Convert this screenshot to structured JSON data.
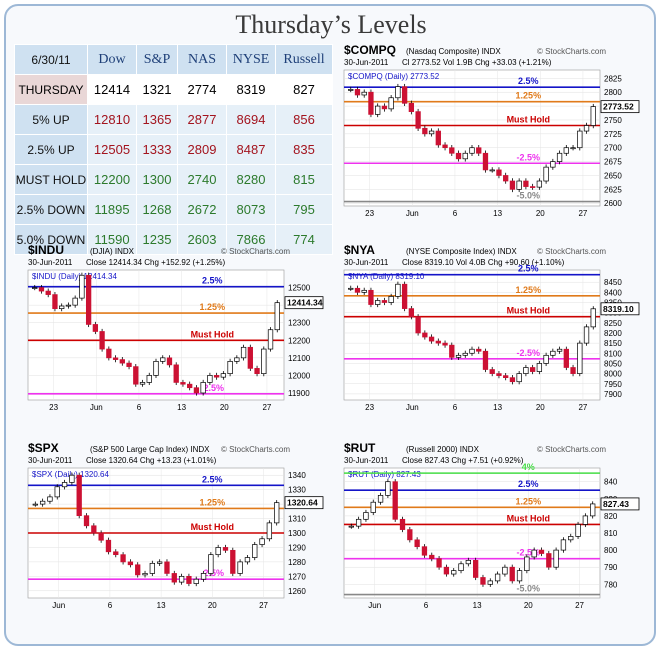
{
  "title": "Thursday’s Levels",
  "table": {
    "date": "6/30/11",
    "columns": [
      "Dow",
      "S&P",
      "NAS",
      "NYSE",
      "Russell"
    ],
    "rows": [
      {
        "label": "THURSDAY",
        "kind": "thr",
        "values": [
          "12414",
          "1321",
          "2774",
          "8319",
          "827"
        ]
      },
      {
        "label": "5% UP",
        "kind": "up",
        "values": [
          "12810",
          "1365",
          "2877",
          "8694",
          "856"
        ]
      },
      {
        "label": "2.5% UP",
        "kind": "up",
        "values": [
          "12505",
          "1333",
          "2809",
          "8487",
          "835"
        ]
      },
      {
        "label": "MUST HOLD",
        "kind": "mh",
        "values": [
          "12200",
          "1300",
          "2740",
          "8280",
          "815"
        ]
      },
      {
        "label": "2.5% DOWN",
        "kind": "dn",
        "values": [
          "11895",
          "1268",
          "2672",
          "8073",
          "795"
        ]
      },
      {
        "label": "5.0% DOWN",
        "kind": "dn",
        "values": [
          "11590",
          "1235",
          "2603",
          "7866",
          "774"
        ]
      }
    ]
  },
  "colors": {
    "blue": "#1414c8",
    "orange": "#e07a1a",
    "red": "#cc0000",
    "magenta": "#ee33ee",
    "gray": "#888888",
    "green": "#44dd44",
    "candle_down": "#cc1133"
  },
  "chart_data": [
    {
      "id": "compq",
      "type": "candlestick",
      "symbol": "$COMPQ",
      "name": "(Nasdaq Composite) INDX",
      "date": "30-Jun-2011",
      "stats": "Cl 2773.52  Vol 1.9B  Chg +33.03 (+1.21%)",
      "legend": "$COMPQ (Daily) 2773.52",
      "last": "2773.52",
      "ylim": [
        2595,
        2840
      ],
      "yticks": [
        2600,
        2625,
        2650,
        2675,
        2700,
        2725,
        2750,
        2775,
        2800,
        2825
      ],
      "xlabels": [
        "23",
        "Jun",
        "6",
        "13",
        "20",
        "27"
      ],
      "levels": [
        {
          "value": 2809,
          "label": "2.5%",
          "color": "blue"
        },
        {
          "value": 2783,
          "label": "1.25%",
          "color": "orange"
        },
        {
          "value": 2740,
          "label": "Must Hold",
          "color": "red"
        },
        {
          "value": 2672,
          "label": "-2.5%",
          "color": "magenta"
        },
        {
          "value": 2603,
          "label": "-5.0%",
          "color": "gray"
        }
      ],
      "closes": [
        2805,
        2795,
        2800,
        2760,
        2775,
        2770,
        2790,
        2810,
        2780,
        2765,
        2735,
        2725,
        2730,
        2705,
        2700,
        2690,
        2680,
        2690,
        2700,
        2690,
        2660,
        2660,
        2650,
        2640,
        2625,
        2640,
        2630,
        2629,
        2640,
        2665,
        2675,
        2690,
        2700,
        2700,
        2730,
        2740,
        2774
      ]
    },
    {
      "id": "indu",
      "type": "candlestick",
      "symbol": "$INDU",
      "name": "(DJIA) INDX",
      "date": "30-Jun-2011",
      "stats": "Close 12414.34  Chg +152.92 (+1.25%)",
      "legend": "$INDU (Daily) 12414.34",
      "last": "12414.34",
      "ylim": [
        11860,
        12600
      ],
      "yticks": [
        11900,
        12000,
        12100,
        12200,
        12300,
        12400,
        12500
      ],
      "xlabels": [
        "23",
        "Jun",
        "6",
        "13",
        "20",
        "27"
      ],
      "levels": [
        {
          "value": 12505,
          "label": "2.5%",
          "color": "blue"
        },
        {
          "value": 12355,
          "label": "1.25%",
          "color": "orange"
        },
        {
          "value": 12200,
          "label": "Must Hold",
          "color": "red"
        },
        {
          "value": 11895,
          "label": "-2.5%",
          "color": "magenta"
        }
      ],
      "closes": [
        12500,
        12480,
        12460,
        12380,
        12395,
        12400,
        12440,
        12570,
        12290,
        12250,
        12150,
        12100,
        12090,
        12070,
        12050,
        11950,
        11960,
        12000,
        12080,
        12100,
        12060,
        11960,
        11950,
        11930,
        11900,
        11960,
        12000,
        11990,
        12010,
        12080,
        12100,
        12160,
        12040,
        12010,
        12150,
        12260,
        12414
      ]
    },
    {
      "id": "nya",
      "type": "candlestick",
      "symbol": "$NYA",
      "name": "(NYSE Composite Index) INDX",
      "date": "30-Jun-2011",
      "stats": "Close 8319.10  Vol 4.0B  Chg +90.60 (+1.10%)",
      "legend": "$NYA (Daily) 8319.10",
      "last": "8319.10",
      "ylim": [
        7870,
        8510
      ],
      "yticks": [
        7900,
        7950,
        8000,
        8050,
        8100,
        8150,
        8200,
        8250,
        8300,
        8350,
        8400,
        8450
      ],
      "xlabels": [
        "23",
        "Jun",
        "6",
        "13",
        "20",
        "27"
      ],
      "levels": [
        {
          "value": 8487,
          "label": "2.5%",
          "color": "blue"
        },
        {
          "value": 8383,
          "label": "1.25%",
          "color": "orange"
        },
        {
          "value": 8280,
          "label": "Must Hold",
          "color": "red"
        },
        {
          "value": 8073,
          "label": "-2.5%",
          "color": "magenta"
        }
      ],
      "closes": [
        8420,
        8400,
        8410,
        8340,
        8360,
        8350,
        8380,
        8440,
        8320,
        8280,
        8200,
        8180,
        8160,
        8150,
        8140,
        8080,
        8090,
        8100,
        8120,
        8110,
        8020,
        8000,
        7990,
        7980,
        7960,
        8000,
        8030,
        8010,
        8050,
        8090,
        8110,
        8120,
        8030,
        8000,
        8150,
        8230,
        8319
      ]
    },
    {
      "id": "spx",
      "type": "candlestick",
      "symbol": "$SPX",
      "name": "(S&P 500 Large Cap Index) INDX",
      "date": "30-Jun-2011",
      "stats": "Close 1320.64  Chg +13.23 (+1.01%)",
      "legend": "$SPX (Daily) 1320.64",
      "last": "1320.64",
      "ylim": [
        1255,
        1345
      ],
      "yticks": [
        1260,
        1270,
        1280,
        1290,
        1300,
        1310,
        1320,
        1330,
        1340
      ],
      "xlabels": [
        "Jun",
        "6",
        "13",
        "20",
        "27"
      ],
      "levels": [
        {
          "value": 1333,
          "label": "2.5%",
          "color": "blue"
        },
        {
          "value": 1317,
          "label": "1.25%",
          "color": "orange"
        },
        {
          "value": 1300,
          "label": "Must Hold",
          "color": "red"
        },
        {
          "value": 1268,
          "label": "-2.5%",
          "color": "magenta"
        }
      ],
      "closes": [
        1320,
        1322,
        1325,
        1332,
        1335,
        1340,
        1312,
        1305,
        1300,
        1295,
        1287,
        1285,
        1280,
        1278,
        1271,
        1272,
        1279,
        1280,
        1272,
        1266,
        1270,
        1265,
        1268,
        1272,
        1285,
        1290,
        1288,
        1272,
        1280,
        1283,
        1292,
        1296,
        1307,
        1321
      ]
    },
    {
      "id": "rut",
      "type": "candlestick",
      "symbol": "$RUT",
      "name": "(Russell 2000) INDX",
      "date": "30-Jun-2011",
      "stats": "Close 827.43  Chg +7.51 (+0.92%)",
      "legend": "$RUT (Daily) 827.43",
      "last": "827.43",
      "ylim": [
        772,
        848
      ],
      "yticks": [
        780,
        790,
        800,
        810,
        820,
        830,
        840
      ],
      "xlabels": [
        "Jun",
        "6",
        "13",
        "20",
        "27"
      ],
      "levels": [
        {
          "value": 845,
          "label": "4%",
          "color": "green"
        },
        {
          "value": 835,
          "label": "2.5%",
          "color": "blue"
        },
        {
          "value": 825,
          "label": "1.25%",
          "color": "orange"
        },
        {
          "value": 815,
          "label": "Must Hold",
          "color": "red"
        },
        {
          "value": 795,
          "label": "-2.5%",
          "color": "magenta"
        },
        {
          "value": 774,
          "label": "-5.0%",
          "color": "gray"
        }
      ],
      "closes": [
        814,
        818,
        822,
        828,
        832,
        840,
        818,
        812,
        806,
        802,
        797,
        795,
        790,
        786,
        788,
        792,
        794,
        784,
        780,
        782,
        786,
        790,
        782,
        788,
        796,
        800,
        798,
        790,
        800,
        806,
        808,
        815,
        820,
        827
      ]
    }
  ]
}
